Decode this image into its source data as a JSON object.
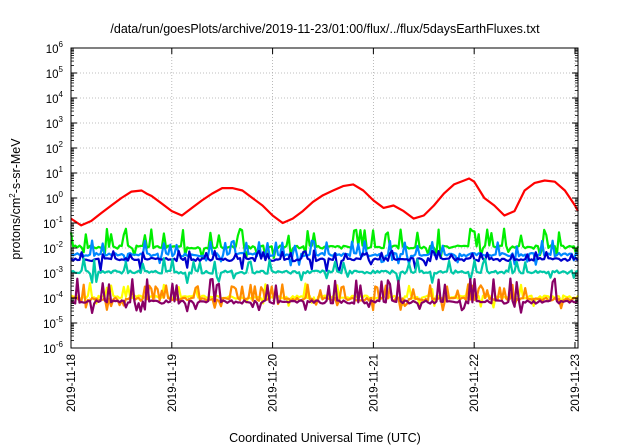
{
  "chart_data": {
    "type": "line",
    "title": "/data/run/goesPlots/archive/2019-11-23/01:00/flux/../flux/5daysEarthFluxes.txt",
    "xlabel": "Coordinated Universal Time (UTC)",
    "ylabel_prefix": "protons/cm",
    "ylabel_sup": "2",
    "ylabel_suffix": "-s-sr-MeV",
    "y_scale": "log",
    "ylim": [
      1e-06,
      1000000.0
    ],
    "y_tick_exponents": [
      -6,
      -5,
      -4,
      -3,
      -2,
      -1,
      0,
      1,
      2,
      3,
      4,
      5,
      6
    ],
    "y_tick_base": "10",
    "xlim_days": [
      0,
      5.03
    ],
    "x_ticks": [
      {
        "day": 0,
        "label": "2019-11-18"
      },
      {
        "day": 1,
        "label": "2019-11-19"
      },
      {
        "day": 2,
        "label": "2019-11-20"
      },
      {
        "day": 3,
        "label": "2019-11-21"
      },
      {
        "day": 4,
        "label": "2019-11-22"
      },
      {
        "day": 5,
        "label": "2019-11-23"
      }
    ],
    "grid": true,
    "series": [
      {
        "color": "#ff0000",
        "points": [
          [
            0.0,
            0.15
          ],
          [
            0.1,
            0.08
          ],
          [
            0.2,
            0.12
          ],
          [
            0.3,
            0.25
          ],
          [
            0.4,
            0.5
          ],
          [
            0.5,
            1.0
          ],
          [
            0.6,
            1.8
          ],
          [
            0.7,
            2.0
          ],
          [
            0.75,
            1.5
          ],
          [
            0.8,
            1.2
          ],
          [
            0.9,
            0.6
          ],
          [
            1.0,
            0.3
          ],
          [
            1.1,
            0.2
          ],
          [
            1.2,
            0.4
          ],
          [
            1.3,
            0.8
          ],
          [
            1.4,
            1.5
          ],
          [
            1.5,
            2.5
          ],
          [
            1.6,
            2.5
          ],
          [
            1.7,
            2.0
          ],
          [
            1.8,
            1.0
          ],
          [
            1.9,
            0.5
          ],
          [
            2.0,
            0.2
          ],
          [
            2.1,
            0.1
          ],
          [
            2.2,
            0.15
          ],
          [
            2.3,
            0.3
          ],
          [
            2.4,
            0.7
          ],
          [
            2.5,
            1.3
          ],
          [
            2.6,
            2.0
          ],
          [
            2.7,
            3.0
          ],
          [
            2.8,
            3.5
          ],
          [
            2.9,
            2.0
          ],
          [
            3.0,
            0.8
          ],
          [
            3.1,
            0.4
          ],
          [
            3.2,
            0.5
          ],
          [
            3.3,
            0.3
          ],
          [
            3.4,
            0.15
          ],
          [
            3.5,
            0.2
          ],
          [
            3.6,
            0.5
          ],
          [
            3.7,
            1.5
          ],
          [
            3.8,
            3.5
          ],
          [
            3.9,
            5.0
          ],
          [
            3.95,
            6.0
          ],
          [
            4.0,
            4.5
          ],
          [
            4.1,
            1.0
          ],
          [
            4.2,
            0.5
          ],
          [
            4.3,
            0.2
          ],
          [
            4.4,
            0.3
          ],
          [
            4.5,
            2.0
          ],
          [
            4.6,
            4.0
          ],
          [
            4.7,
            5.0
          ],
          [
            4.8,
            4.5
          ],
          [
            4.9,
            2.0
          ],
          [
            5.0,
            0.5
          ],
          [
            5.03,
            0.3
          ]
        ]
      },
      {
        "color": "#00ee00",
        "base": 0.011,
        "spike": 0.06,
        "seed": 3
      },
      {
        "color": "#0088ff",
        "base": 0.0055,
        "spike": 0.02,
        "seed": 7
      },
      {
        "color": "#0000cc",
        "base": 0.0035,
        "spike": 0.008,
        "seed": 11
      },
      {
        "color": "#00c8a8",
        "base": 0.0011,
        "spike": 0.004,
        "seed": 19
      },
      {
        "color": "#ffff00",
        "base": 0.00011,
        "spike": 0.0004,
        "seed": 23
      },
      {
        "color": "#ff8c00",
        "base": 9e-05,
        "spike": 0.00035,
        "seed": 29
      },
      {
        "color": "#880066",
        "base": 7e-05,
        "spike": 0.0006,
        "seed": 31
      }
    ]
  }
}
